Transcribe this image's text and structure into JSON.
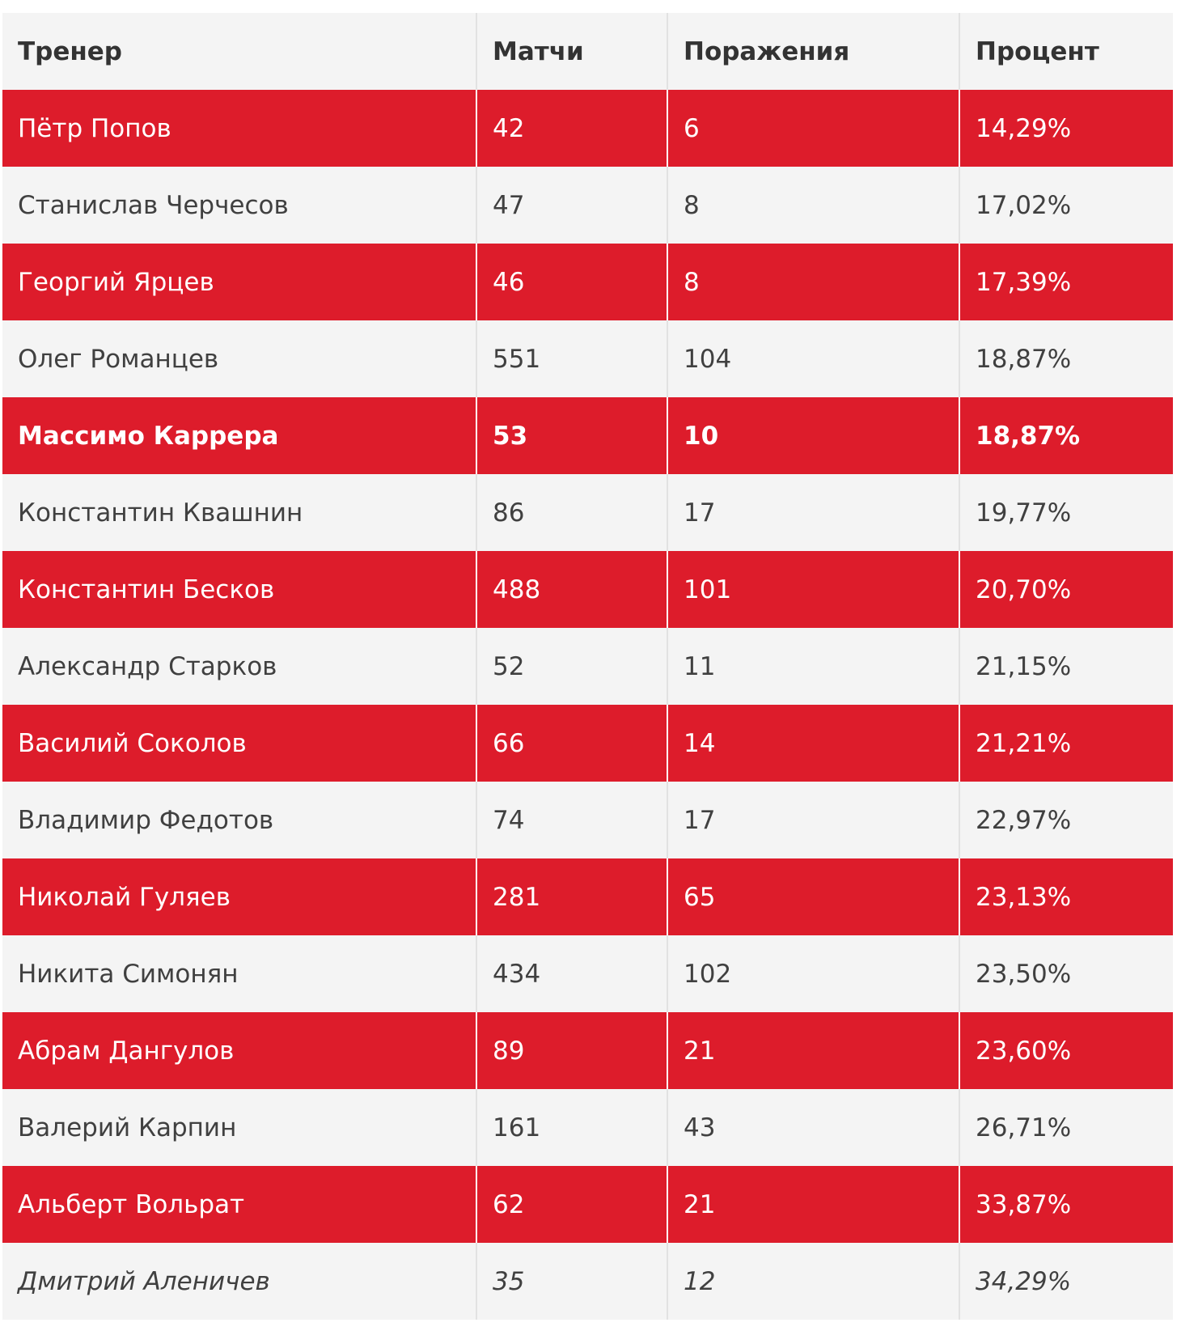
{
  "table": {
    "headers": [
      "Тренер",
      "Матчи",
      "Поражения",
      "Процент"
    ],
    "rows": [
      {
        "coach": "Пётр Попов",
        "matches": "42",
        "losses": "6",
        "percent": "14,29%",
        "style": "red"
      },
      {
        "coach": "Станислав Черчесов",
        "matches": "47",
        "losses": "8",
        "percent": "17,02%",
        "style": "light"
      },
      {
        "coach": "Георгий Ярцев",
        "matches": "46",
        "losses": "8",
        "percent": "17,39%",
        "style": "red"
      },
      {
        "coach": "Олег Романцев",
        "matches": "551",
        "losses": "104",
        "percent": "18,87%",
        "style": "light"
      },
      {
        "coach": "Массимо Каррера",
        "matches": "53",
        "losses": "10",
        "percent": "18,87%",
        "style": "red bold"
      },
      {
        "coach": "Константин Квашнин",
        "matches": "86",
        "losses": "17",
        "percent": "19,77%",
        "style": "light"
      },
      {
        "coach": "Константин Бесков",
        "matches": "488",
        "losses": "101",
        "percent": "20,70%",
        "style": "red"
      },
      {
        "coach": "Александр Старков",
        "matches": "52",
        "losses": "11",
        "percent": "21,15%",
        "style": "light"
      },
      {
        "coach": "Василий Соколов",
        "matches": "66",
        "losses": "14",
        "percent": "21,21%",
        "style": "red"
      },
      {
        "coach": "Владимир Федотов",
        "matches": "74",
        "losses": "17",
        "percent": "22,97%",
        "style": "light"
      },
      {
        "coach": "Николай Гуляев",
        "matches": "281",
        "losses": "65",
        "percent": "23,13%",
        "style": "red"
      },
      {
        "coach": "Никита Симонян",
        "matches": "434",
        "losses": "102",
        "percent": "23,50%",
        "style": "light"
      },
      {
        "coach": "Абрам Дангулов",
        "matches": "89",
        "losses": "21",
        "percent": "23,60%",
        "style": "red"
      },
      {
        "coach": "Валерий Карпин",
        "matches": "161",
        "losses": "43",
        "percent": "26,71%",
        "style": "light"
      },
      {
        "coach": "Альберт Вольрат",
        "matches": "62",
        "losses": "21",
        "percent": "33,87%",
        "style": "red"
      },
      {
        "coach": "Дмитрий Аленичев",
        "matches": "35",
        "losses": "12",
        "percent": "34,29%",
        "style": "light italic"
      }
    ]
  },
  "colors": {
    "red_row": "#dd1c2b",
    "light_row": "#f4f4f4",
    "header_text": "#333333",
    "body_text": "#404040"
  }
}
